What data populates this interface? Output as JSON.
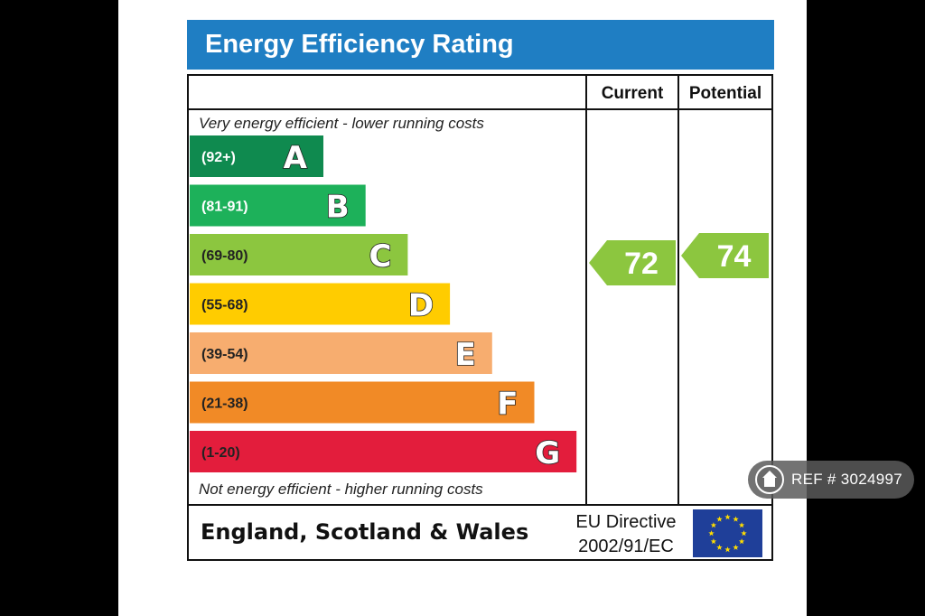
{
  "banner_title": "Energy Efficiency Rating",
  "headers": {
    "current": "Current",
    "potential": "Potential"
  },
  "top_note": "Very energy efficient - lower running costs",
  "bottom_note": "Not energy efficient - higher running costs",
  "region": "England, Scotland & Wales",
  "directive": {
    "line1": "EU Directive",
    "line2": "2002/91/EC"
  },
  "ref_badge": "REF # 3024997",
  "colors": {
    "banner": "#1f7ec3",
    "A": "#0f8a4f",
    "B": "#1db15a",
    "C": "#8cc63f",
    "D": "#ffcc00",
    "E": "#f7ad6f",
    "F": "#f18a26",
    "G": "#e31d3c",
    "eu_flag": "#1f3f99",
    "eu_stars": "#ffdd00"
  },
  "chart_data": {
    "type": "bar",
    "title": "Energy Efficiency Rating",
    "categories": [
      "A",
      "B",
      "C",
      "D",
      "E",
      "F",
      "G"
    ],
    "ranges": [
      "(92+)",
      "(81-91)",
      "(69-80)",
      "(55-68)",
      "(39-54)",
      "(21-38)",
      "(1-20)"
    ],
    "current": 72,
    "potential": 74,
    "current_band": "C",
    "potential_band": "C"
  }
}
